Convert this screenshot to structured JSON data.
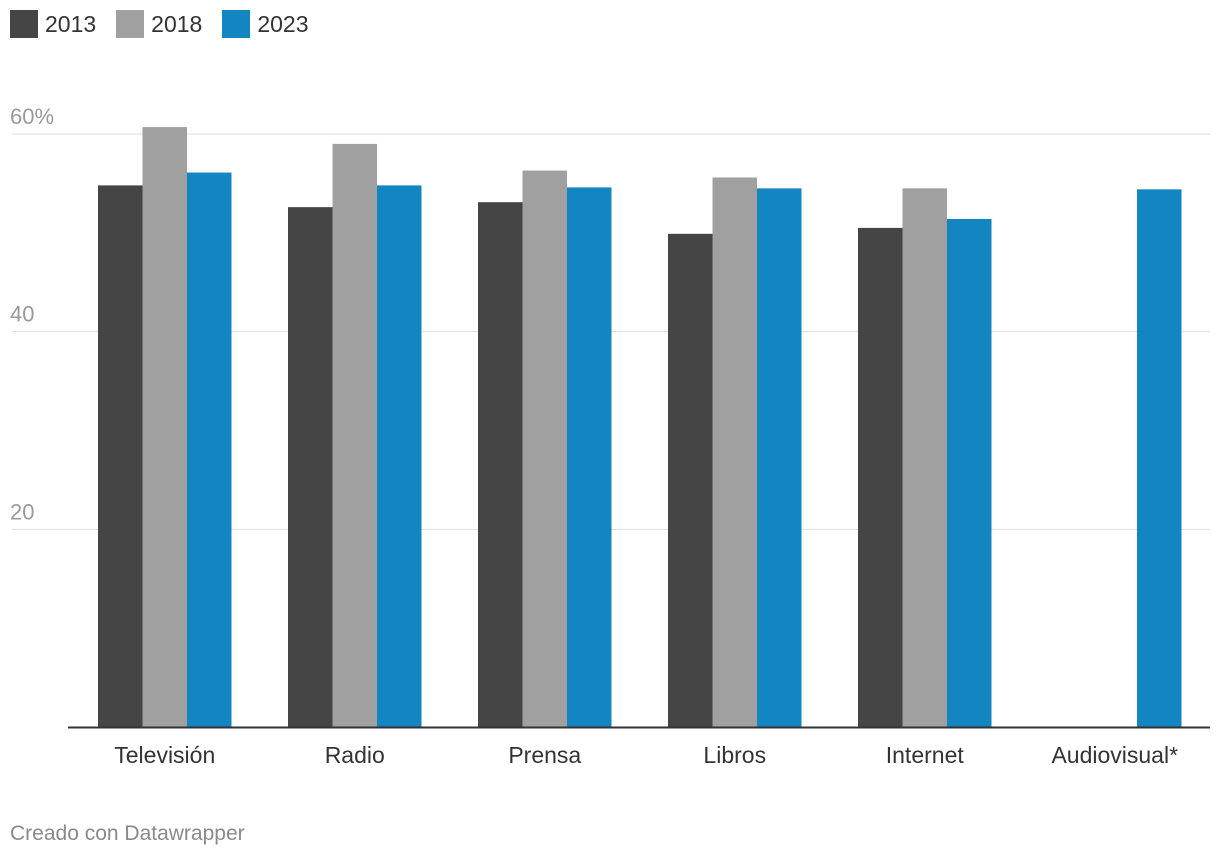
{
  "legend": [
    {
      "label": "2013",
      "color": "#454545"
    },
    {
      "label": "2018",
      "color": "#a0a0a0"
    },
    {
      "label": "2023",
      "color": "#1385c0"
    }
  ],
  "footer": {
    "credit": "Creado con Datawrapper"
  },
  "chart_data": {
    "type": "bar",
    "title": "",
    "xlabel": "",
    "ylabel": "",
    "ylim": [
      0,
      60
    ],
    "yticks": [
      {
        "value": 20,
        "label": "20"
      },
      {
        "value": 40,
        "label": "40"
      },
      {
        "value": 60,
        "label": "60%"
      }
    ],
    "grid": true,
    "legend_position": "top-left",
    "categories": [
      "Televisión",
      "Radio",
      "Prensa",
      "Libros",
      "Internet",
      "Audiovisual*"
    ],
    "series": [
      {
        "name": "2013",
        "color": "#454545",
        "values": [
          54.8,
          52.6,
          53.1,
          49.9,
          50.5,
          null
        ]
      },
      {
        "name": "2018",
        "color": "#a0a0a0",
        "values": [
          60.7,
          59.0,
          56.3,
          55.6,
          54.5,
          null
        ]
      },
      {
        "name": "2023",
        "color": "#1385c0",
        "values": [
          56.1,
          54.8,
          54.6,
          54.5,
          51.4,
          54.4
        ]
      }
    ]
  }
}
